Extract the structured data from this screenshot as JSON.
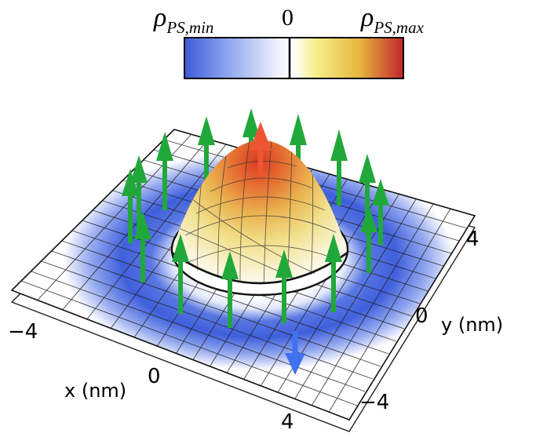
{
  "colorbar": {
    "min_label": {
      "symbol": "ρ",
      "subscript": "PS,min"
    },
    "zero_label": "0",
    "max_label": {
      "symbol": "ρ",
      "subscript": "PS,max"
    },
    "colors": [
      "#3d5bd8",
      "#8fa6ee",
      "#ffffff",
      "#f6ee8a",
      "#e7b640",
      "#c0242c"
    ]
  },
  "axes": {
    "x": {
      "name": "x",
      "unit": "(nm)",
      "ticks": [
        "−4",
        "0",
        "4"
      ]
    },
    "y": {
      "name": "y",
      "unit": "(nm)",
      "ticks": [
        "4",
        "0",
        "−4"
      ]
    }
  },
  "colors": {
    "spin_arrow": "#21a83a",
    "up_arrow": "#ee5533",
    "down_arrow": "#3f72f0",
    "negative_density": "#4466dd",
    "positive_density": "#d85a2a"
  },
  "icons": [
    "spin-up-arrow-icon",
    "spin-down-arrow-icon"
  ]
}
